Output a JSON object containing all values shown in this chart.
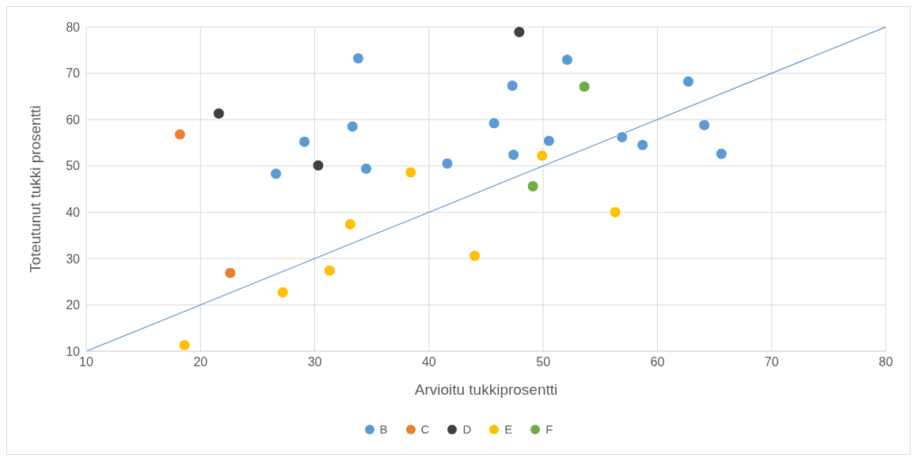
{
  "chart_data": {
    "type": "scatter",
    "xlabel": "Arvioitu tukkiprosentti",
    "ylabel": "Toteutunut tukki prosentti",
    "xlim": [
      10,
      80
    ],
    "xticks": [
      10,
      20,
      30,
      40,
      50,
      60,
      70,
      80
    ],
    "ylim": [
      10,
      80
    ],
    "yticks": [
      10,
      20,
      30,
      40,
      50,
      60,
      70,
      80
    ],
    "grid": true,
    "legend": "bottom",
    "marker": "circle",
    "series": [
      {
        "name": "B",
        "color": "#5b9bd5",
        "x": [
          26.6,
          29.1,
          33.8,
          33.3,
          34.5,
          41.6,
          45.7,
          47.3,
          47.4,
          50.5,
          52.1,
          56.9,
          58.7,
          62.7,
          64.1,
          65.6
        ],
        "values": [
          48.3,
          55.2,
          73.2,
          58.5,
          49.4,
          50.5,
          59.2,
          67.3,
          52.4,
          55.4,
          72.9,
          56.2,
          54.5,
          68.2,
          58.8,
          52.6
        ]
      },
      {
        "name": "C",
        "color": "#ed7d31",
        "x": [
          18.2,
          22.6
        ],
        "values": [
          56.8,
          26.9
        ]
      },
      {
        "name": "D",
        "color": "#404040",
        "x": [
          21.6,
          30.3,
          47.9
        ],
        "values": [
          61.3,
          50.1,
          78.9
        ]
      },
      {
        "name": "E",
        "color": "#ffc000",
        "x": [
          18.6,
          27.2,
          31.3,
          33.1,
          38.4,
          44.0,
          49.9,
          56.3
        ],
        "values": [
          11.3,
          22.7,
          27.4,
          37.4,
          48.6,
          30.6,
          52.2,
          40.0
        ]
      },
      {
        "name": "F",
        "color": "#70ad47",
        "x": [
          49.1,
          53.6
        ],
        "values": [
          45.6,
          67.1
        ]
      },
      {
        "type": "line",
        "color": "#5b9bd5",
        "x": [
          10,
          80
        ],
        "values": [
          10,
          80
        ],
        "line_style": "solid",
        "marker": "none"
      }
    ]
  }
}
